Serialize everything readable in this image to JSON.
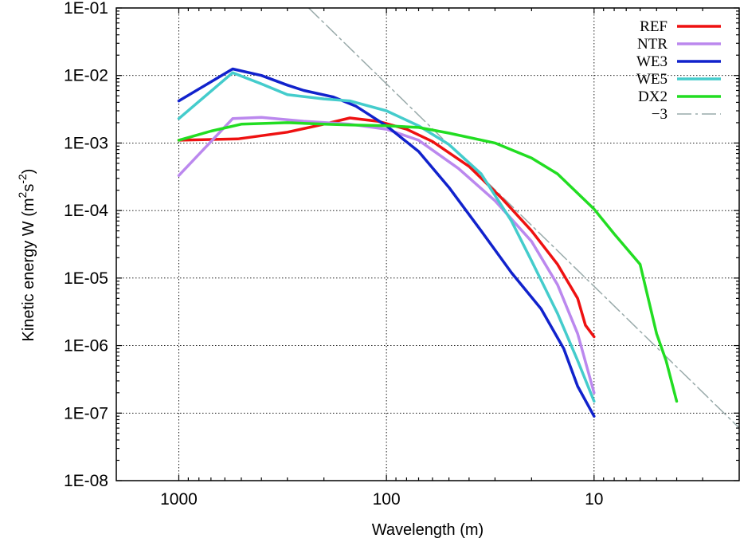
{
  "chart_data": {
    "type": "line",
    "title": "",
    "xlabel": "Wavelength (m)",
    "ylabel_main": "Kinetic energy W (m",
    "ylabel_sup1": "2",
    "ylabel_mid": "s",
    "ylabel_sup2": "-2",
    "ylabel_end": ")",
    "x_scale": "log",
    "x_reversed": true,
    "xlim": [
      2000,
      2
    ],
    "y_scale": "log",
    "ylim": [
      1e-08,
      0.1
    ],
    "grid": true,
    "legend_position": "top-right",
    "x_ticks": [
      {
        "value": 1000,
        "label": "1000"
      },
      {
        "value": 100,
        "label": "100"
      },
      {
        "value": 10,
        "label": "10"
      }
    ],
    "y_ticks": [
      {
        "value": 1e-08,
        "label": "1E-08"
      },
      {
        "value": 1e-07,
        "label": "1E-07"
      },
      {
        "value": 1e-06,
        "label": "1E-06"
      },
      {
        "value": 1e-05,
        "label": "1E-05"
      },
      {
        "value": 0.0001,
        "label": "1E-04"
      },
      {
        "value": 0.001,
        "label": "1E-03"
      },
      {
        "value": 0.01,
        "label": "1E-02"
      },
      {
        "value": 0.1,
        "label": "1E-01"
      }
    ],
    "series": [
      {
        "name": "REF",
        "color": "#ee1111",
        "width": 3.5,
        "dash": "",
        "x": [
          1000,
          520,
          300,
          200,
          150,
          110,
          80,
          60,
          40,
          28,
          20,
          15,
          12,
          11,
          10
        ],
        "y": [
          0.0011,
          0.00115,
          0.00145,
          0.0019,
          0.00235,
          0.0021,
          0.0016,
          0.00105,
          0.00045,
          0.000155,
          5e-05,
          1.6e-05,
          5e-06,
          2e-06,
          1.35e-06
        ]
      },
      {
        "name": "NTR",
        "color": "#bb88ee",
        "width": 3.5,
        "dash": "",
        "x": [
          1000,
          550,
          400,
          250,
          150,
          100,
          70,
          45,
          30,
          20,
          15,
          12,
          10
        ],
        "y": [
          0.00033,
          0.0023,
          0.0024,
          0.0021,
          0.0019,
          0.0016,
          0.0011,
          0.00042,
          0.00014,
          3.5e-05,
          8e-06,
          1.5e-06,
          2e-07
        ]
      },
      {
        "name": "WE3",
        "color": "#1122cc",
        "width": 3.5,
        "dash": "",
        "x": [
          1000,
          550,
          400,
          300,
          250,
          180,
          140,
          100,
          70,
          50,
          35,
          25,
          18,
          14,
          12,
          10
        ],
        "y": [
          0.0042,
          0.0125,
          0.01,
          0.0072,
          0.006,
          0.0048,
          0.0035,
          0.0018,
          0.00075,
          0.00022,
          5e-05,
          1.2e-05,
          3.5e-06,
          9e-07,
          2.5e-07,
          9e-08
        ]
      },
      {
        "name": "WE5",
        "color": "#44cccc",
        "width": 3.5,
        "dash": "",
        "x": [
          1000,
          550,
          400,
          300,
          200,
          150,
          100,
          70,
          50,
          35,
          25,
          20,
          15,
          12,
          10
        ],
        "y": [
          0.0023,
          0.011,
          0.0075,
          0.0052,
          0.0045,
          0.0042,
          0.003,
          0.0018,
          0.00095,
          0.00035,
          7e-05,
          1.8e-05,
          3e-06,
          6e-07,
          1.5e-07
        ]
      },
      {
        "name": "DX2",
        "color": "#22dd22",
        "width": 3.5,
        "dash": "",
        "x": [
          1000,
          700,
          500,
          300,
          200,
          150,
          100,
          70,
          50,
          30,
          20,
          15,
          10,
          8,
          6,
          5,
          4.5,
          4
        ],
        "y": [
          0.0011,
          0.0015,
          0.0019,
          0.002,
          0.0019,
          0.00185,
          0.0018,
          0.0017,
          0.0014,
          0.001,
          0.0006,
          0.00035,
          0.000105,
          4.5e-05,
          1.6e-05,
          1.5e-06,
          6e-07,
          1.5e-07
        ]
      },
      {
        "name": "−3",
        "color": "#99aaaa",
        "width": 1.5,
        "dash": "18 5 3 5",
        "x": [
          237,
          1.99
        ],
        "y": [
          0.1,
          5.95e-08
        ]
      }
    ]
  }
}
